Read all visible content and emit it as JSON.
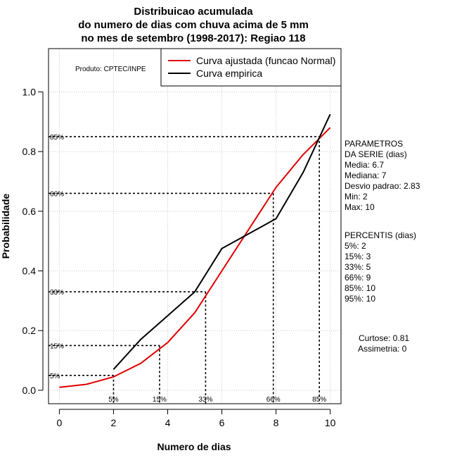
{
  "chart_data": {
    "type": "line",
    "title_lines": [
      "Distribuicao acumulada",
      "do numero de dias com chuva acima de 5 mm",
      "no mes de setembro (1998-2017): Regiao 118"
    ],
    "xlabel": "Numero de dias",
    "ylabel": "Probabilidade",
    "xlim": [
      -0.4,
      10.4
    ],
    "ylim": [
      -0.045,
      1.145
    ],
    "x_ticks": [
      0,
      2,
      4,
      6,
      8,
      10
    ],
    "y_ticks": [
      0.0,
      0.2,
      0.4,
      0.6,
      0.8,
      1.0
    ],
    "x_tick_labels": [
      "0",
      "2",
      "4",
      "6",
      "8",
      "10"
    ],
    "y_tick_labels": [
      "0.0",
      "0.2",
      "0.4",
      "0.6",
      "0.8",
      "1.0"
    ],
    "grid": true,
    "product_label": "Produto: CPTEC/INPE",
    "legend": {
      "position": "top-right",
      "entries": [
        {
          "label": "Curva ajustada (funcao Normal)",
          "color": "#e00000"
        },
        {
          "label": "Curva empirica",
          "color": "#000000"
        }
      ]
    },
    "series": [
      {
        "name": "Curva ajustada (funcao Normal)",
        "color": "#e00000",
        "x": [
          0,
          1,
          2,
          3,
          4,
          5,
          6,
          7,
          8,
          9,
          10
        ],
        "y": [
          0.01,
          0.02,
          0.045,
          0.09,
          0.16,
          0.26,
          0.4,
          0.54,
          0.68,
          0.79,
          0.88
        ]
      },
      {
        "name": "Curva empirica",
        "color": "#000000",
        "x": [
          2,
          3,
          4,
          5,
          6,
          7,
          8,
          9,
          10
        ],
        "y": [
          0.07,
          0.17,
          0.25,
          0.33,
          0.475,
          0.525,
          0.575,
          0.73,
          0.925
        ]
      }
    ],
    "percentile_guides": [
      {
        "label": "5%",
        "x": 2.0,
        "y": 0.05
      },
      {
        "label": "15%",
        "x": 3.7,
        "y": 0.15
      },
      {
        "label": "33%",
        "x": 5.4,
        "y": 0.33
      },
      {
        "label": "66%",
        "x": 7.9,
        "y": 0.66
      },
      {
        "label": "85%",
        "x": 9.6,
        "y": 0.85
      }
    ],
    "parameters_block": [
      "PARAMETROS",
      "DA SERIE (dias)",
      "  Media: 6.7",
      "  Mediana: 7",
      "  Desvio padrao: 2.83",
      "  Min: 2",
      "  Max: 10"
    ],
    "percentiles_block": [
      "PERCENTIS (dias)",
      "  5%: 2",
      "  15%: 3",
      "  33%: 5",
      "  66%: 9",
      "  85%: 10",
      "  95%: 10"
    ],
    "shape_block": [
      "Curtose: 0.81",
      "Assimetria: 0"
    ]
  }
}
